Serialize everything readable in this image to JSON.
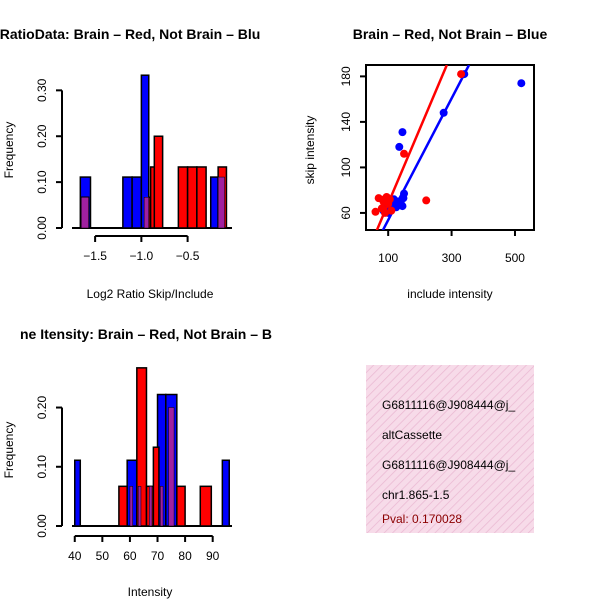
{
  "colors": {
    "red": "#ff0000",
    "blue": "#0000ff",
    "overlap": "#a020a0",
    "pval": "#8b0000",
    "panel_bg": "#f5d6e6"
  },
  "chart_data": [
    {
      "type": "bar",
      "title": "RatioData: Brain – Red, Not Brain – Blu",
      "xlabel": "Log2 Ratio Skip/Include",
      "ylabel": "Frequency",
      "xlim": [
        -1.75,
        -0.02
      ],
      "ylim": [
        0,
        0.34
      ],
      "xticks": [
        -1.5,
        -1.0,
        -0.5
      ],
      "xtick_labels": [
        "−1.5",
        "−1.0",
        "−0.5"
      ],
      "yticks": [
        0,
        0.1,
        0.2,
        0.3
      ],
      "ytick_labels": [
        "0.00",
        "0.10",
        "0.20",
        "0.30"
      ],
      "series": [
        {
          "name": "Not Brain",
          "color": "blue",
          "bins": [
            [
              -1.66,
              -1.55,
              0.111
            ],
            [
              -1.2,
              -1.1,
              0.111
            ],
            [
              -1.1,
              -1.0,
              0.111
            ],
            [
              -1.0,
              -0.92,
              0.333
            ],
            [
              -0.25,
              -0.17,
              0.111
            ]
          ]
        },
        {
          "name": "Brain",
          "color": "red",
          "bins": [
            [
              -1.65,
              -1.57,
              0.067
            ],
            [
              -0.92,
              -0.86,
              0.067
            ],
            [
              -0.9,
              -0.83,
              0.133
            ],
            [
              -0.86,
              -0.77,
              0.2
            ],
            [
              -0.6,
              -0.5,
              0.133
            ],
            [
              -0.5,
              -0.4,
              0.133
            ],
            [
              -0.4,
              -0.3,
              0.133
            ],
            [
              -0.17,
              -0.08,
              0.133
            ]
          ]
        },
        {
          "name": "Overlap",
          "color": "overlap",
          "bins": [
            [
              -1.65,
              -1.57,
              0.067
            ],
            [
              -0.97,
              -0.92,
              0.067
            ],
            [
              -0.17,
              -0.1,
              0.111
            ]
          ]
        }
      ]
    },
    {
      "type": "scatter",
      "title": "Brain – Red, Not Brain – Blue",
      "xlabel": "include intensity",
      "ylabel": "skip intensity",
      "xlim": [
        30,
        560
      ],
      "ylim": [
        45,
        190
      ],
      "xticks": [
        100,
        300,
        500
      ],
      "xtick_labels": [
        "100",
        "300",
        "500"
      ],
      "yticks": [
        60,
        100,
        140,
        180
      ],
      "ytick_labels": [
        "60",
        "100",
        "140",
        "180"
      ],
      "series": [
        {
          "name": "Not Brain",
          "color": "blue",
          "points": [
            [
              85,
              62
            ],
            [
              95,
              65
            ],
            [
              100,
              60
            ],
            [
              102,
              70
            ],
            [
              110,
              68
            ],
            [
              118,
              72
            ],
            [
              125,
              65
            ],
            [
              130,
              70
            ],
            [
              140,
              68
            ],
            [
              145,
              66
            ],
            [
              148,
              73
            ],
            [
              150,
              77
            ],
            [
              135,
              118
            ],
            [
              145,
              131
            ],
            [
              275,
              148
            ],
            [
              340,
              182
            ],
            [
              520,
              174
            ]
          ],
          "fit": [
            [
              78,
              42
            ],
            [
              355,
              190
            ]
          ]
        },
        {
          "name": "Brain",
          "color": "red",
          "points": [
            [
              60,
              61
            ],
            [
              70,
              73
            ],
            [
              80,
              64
            ],
            [
              85,
              70
            ],
            [
              88,
              72
            ],
            [
              90,
              60
            ],
            [
              95,
              74
            ],
            [
              100,
              68
            ],
            [
              105,
              72
            ],
            [
              110,
              62
            ],
            [
              150,
              112
            ],
            [
              220,
              71
            ],
            [
              330,
              182
            ]
          ],
          "fit": [
            [
              60,
              42
            ],
            [
              285,
              190
            ]
          ]
        }
      ]
    },
    {
      "type": "bar",
      "title": "ne Itensity: Brain – Red, Not Brain – B",
      "xlabel": "Intensity",
      "ylabel": "Frequency",
      "xlim": [
        39,
        97
      ],
      "ylim": [
        0,
        0.26
      ],
      "xticks": [
        40,
        50,
        60,
        70,
        80,
        90
      ],
      "xtick_labels": [
        "40",
        "50",
        "60",
        "70",
        "80",
        "90"
      ],
      "yticks": [
        0,
        0.1,
        0.2
      ],
      "ytick_labels": [
        "0.00",
        "0.10",
        "0.20"
      ],
      "series": [
        {
          "name": "Not Brain",
          "color": "blue",
          "bins": [
            [
              40,
              42,
              0.111
            ],
            [
              59,
              62.5,
              0.111
            ],
            [
              70,
              73,
              0.222
            ],
            [
              73,
              77,
              0.222
            ],
            [
              93.5,
              96,
              0.111
            ]
          ]
        },
        {
          "name": "Brain",
          "color": "red",
          "bins": [
            [
              56,
              59,
              0.067
            ],
            [
              62.5,
              66,
              0.267
            ],
            [
              66,
              68.5,
              0.067
            ],
            [
              68.5,
              70.5,
              0.133
            ],
            [
              77,
              80,
              0.067
            ],
            [
              85.5,
              89.5,
              0.067
            ]
          ]
        },
        {
          "name": "Overlap",
          "color": "overlap",
          "bins": [
            [
              60,
              61,
              0.067
            ],
            [
              63,
              64,
              0.067
            ],
            [
              67,
              68,
              0.067
            ],
            [
              71,
              72,
              0.067
            ],
            [
              74,
              76,
              0.2
            ]
          ]
        }
      ]
    }
  ],
  "info_panel": {
    "id_line1": "G6811116@J908444@j_",
    "event_type": "altCassette",
    "id_line2": "G6811116@J908444@j_",
    "location": "chr1.865-1.5",
    "pval": "Pval: 0.170028"
  }
}
